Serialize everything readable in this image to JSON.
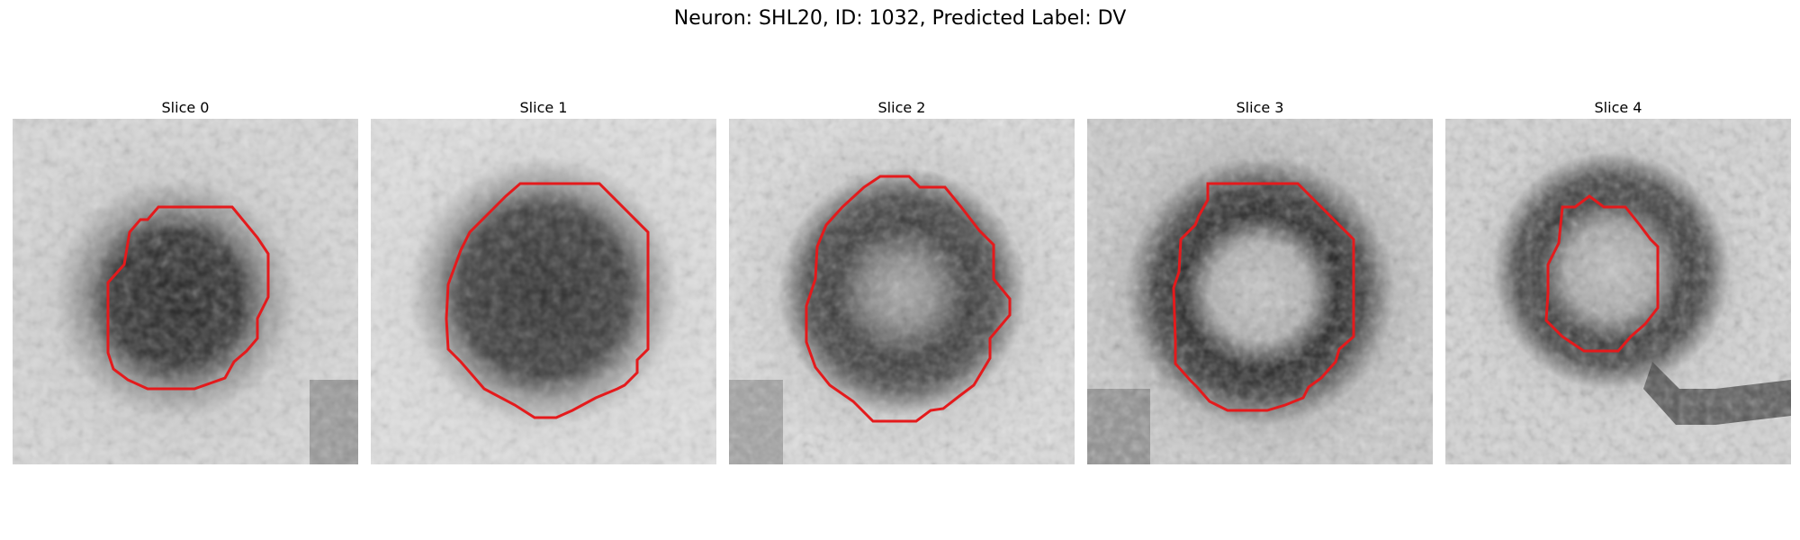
{
  "figure": {
    "title": "Neuron: SHL20, ID: 1032, Predicted Label: DV",
    "contour_color": "#e41a1c",
    "colormap": "gray"
  },
  "slices": [
    {
      "label": "Slice 0",
      "pattern": "filled-dark-blob",
      "contour": "irregular-octagon"
    },
    {
      "label": "Slice 1",
      "pattern": "filled-dark-blob",
      "contour": "large-octagon"
    },
    {
      "label": "Slice 2",
      "pattern": "dark-ring-light-center",
      "contour": "octagon"
    },
    {
      "label": "Slice 3",
      "pattern": "thick-dark-ring-light-center",
      "contour": "octagon"
    },
    {
      "label": "Slice 4",
      "pattern": "thin-dark-ring-light-center",
      "contour": "small-octagon"
    }
  ]
}
